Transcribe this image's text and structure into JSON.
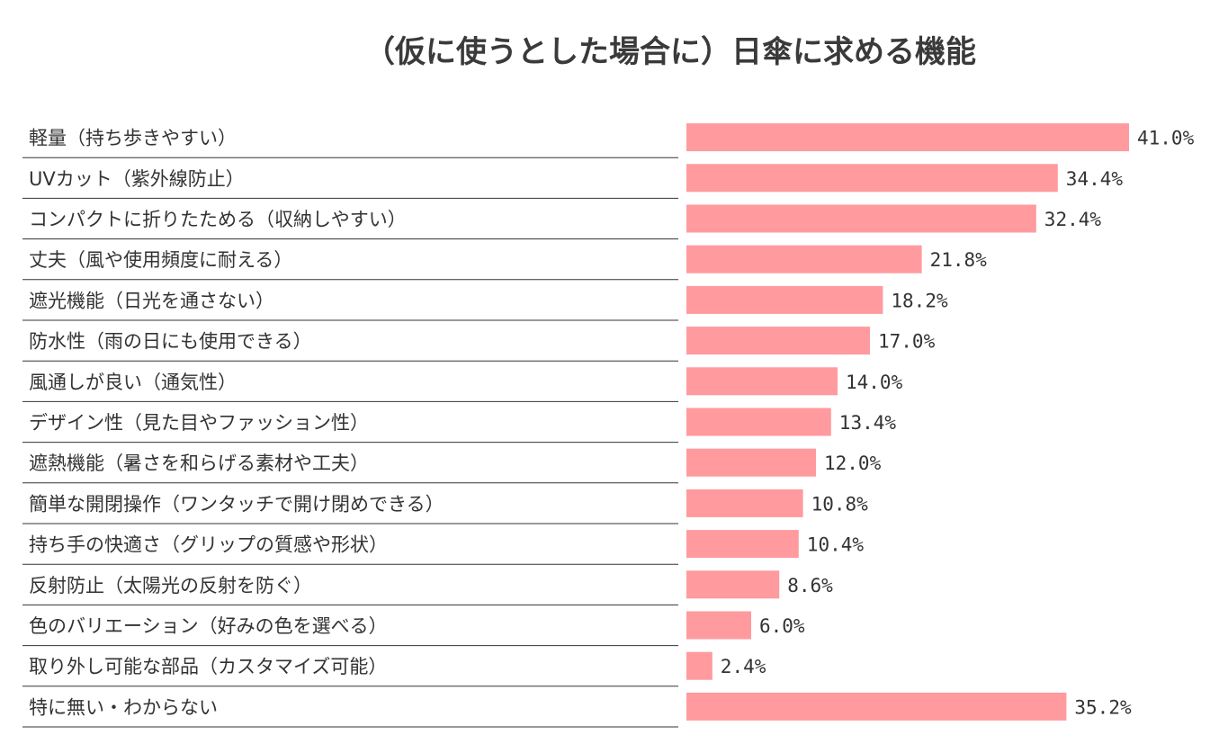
{
  "chart_data": {
    "type": "bar",
    "orientation": "horizontal",
    "title": "（仮に使うとした場合に）日傘に求める機能",
    "categories": [
      "軽量（持ち歩きやすい）",
      "UVカット（紫外線防止）",
      "コンパクトに折りたためる（収納しやすい）",
      "丈夫（風や使用頻度に耐える）",
      "遮光機能（日光を通さない）",
      "防水性（雨の日にも使用できる）",
      "風通しが良い（通気性）",
      "デザイン性（見た目やファッション性）",
      "遮熱機能（暑さを和らげる素材や工夫）",
      "簡単な開閉操作（ワンタッチで開け閉めできる）",
      "持ち手の快適さ（グリップの質感や形状）",
      "反射防止（太陽光の反射を防ぐ）",
      "色のバリエーション（好みの色を選べる）",
      "取り外し可能な部品（カスタマイズ可能）",
      "特に無い・わからない"
    ],
    "values": [
      41.0,
      34.4,
      32.4,
      21.8,
      18.2,
      17.0,
      14.0,
      13.4,
      12.0,
      10.8,
      10.4,
      8.6,
      6.0,
      2.4,
      35.2
    ],
    "value_labels": [
      "41.0%",
      "34.4%",
      "32.4%",
      "21.8%",
      "18.2%",
      "17.0%",
      "14.0%",
      "13.4%",
      "12.0%",
      "10.8%",
      "10.4%",
      "8.6%",
      "6.0%",
      "2.4%",
      "35.2%"
    ],
    "xlim": [
      0,
      41.0
    ],
    "bar_color": "#ff9a9e",
    "divider_color": "#333333",
    "grid": false,
    "legend": "none"
  }
}
